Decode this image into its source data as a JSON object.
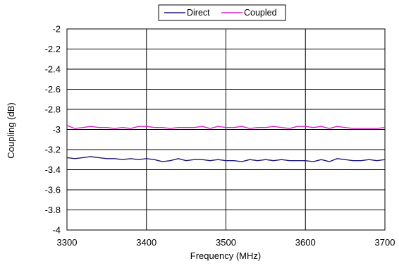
{
  "chart_data": {
    "type": "line",
    "title": "",
    "xlabel": "Frequency (MHz)",
    "ylabel": "Coupling (dB)",
    "xlim": [
      3300,
      3700
    ],
    "ylim": [
      -4,
      -2
    ],
    "x_ticks": [
      3300,
      3400,
      3500,
      3600,
      3700
    ],
    "y_ticks": [
      -2,
      -2.2,
      -2.4,
      -2.6,
      -2.8,
      -3,
      -3.2,
      -3.4,
      -3.6,
      -3.8,
      -4
    ],
    "grid": {
      "vertical": true,
      "horizontal": true
    },
    "legend_position": "top-center",
    "x": [
      3300,
      3310,
      3320,
      3330,
      3340,
      3350,
      3360,
      3370,
      3380,
      3390,
      3400,
      3410,
      3420,
      3430,
      3440,
      3450,
      3460,
      3470,
      3480,
      3490,
      3500,
      3510,
      3520,
      3530,
      3540,
      3550,
      3560,
      3570,
      3580,
      3590,
      3600,
      3610,
      3620,
      3630,
      3640,
      3650,
      3660,
      3670,
      3680,
      3690,
      3700
    ],
    "series": [
      {
        "name": "Direct",
        "color": "#1f1a7a",
        "values": [
          -3.28,
          -3.29,
          -3.28,
          -3.27,
          -3.28,
          -3.29,
          -3.29,
          -3.3,
          -3.29,
          -3.3,
          -3.29,
          -3.3,
          -3.32,
          -3.31,
          -3.29,
          -3.31,
          -3.3,
          -3.3,
          -3.31,
          -3.3,
          -3.31,
          -3.31,
          -3.32,
          -3.3,
          -3.31,
          -3.3,
          -3.31,
          -3.3,
          -3.31,
          -3.31,
          -3.31,
          -3.32,
          -3.3,
          -3.32,
          -3.29,
          -3.3,
          -3.31,
          -3.31,
          -3.3,
          -3.31,
          -3.3
        ]
      },
      {
        "name": "Coupled",
        "color": "#e020c8",
        "values": [
          -2.96,
          -2.99,
          -2.98,
          -2.97,
          -2.98,
          -2.98,
          -2.99,
          -2.98,
          -2.99,
          -2.97,
          -2.97,
          -2.98,
          -2.98,
          -2.99,
          -2.98,
          -2.98,
          -2.98,
          -2.97,
          -2.99,
          -2.97,
          -2.98,
          -2.98,
          -2.97,
          -2.99,
          -2.98,
          -2.98,
          -2.97,
          -2.98,
          -2.99,
          -2.97,
          -2.97,
          -2.98,
          -2.97,
          -2.99,
          -2.97,
          -2.98,
          -2.99,
          -2.99,
          -2.99,
          -2.99,
          -2.98
        ]
      }
    ]
  }
}
